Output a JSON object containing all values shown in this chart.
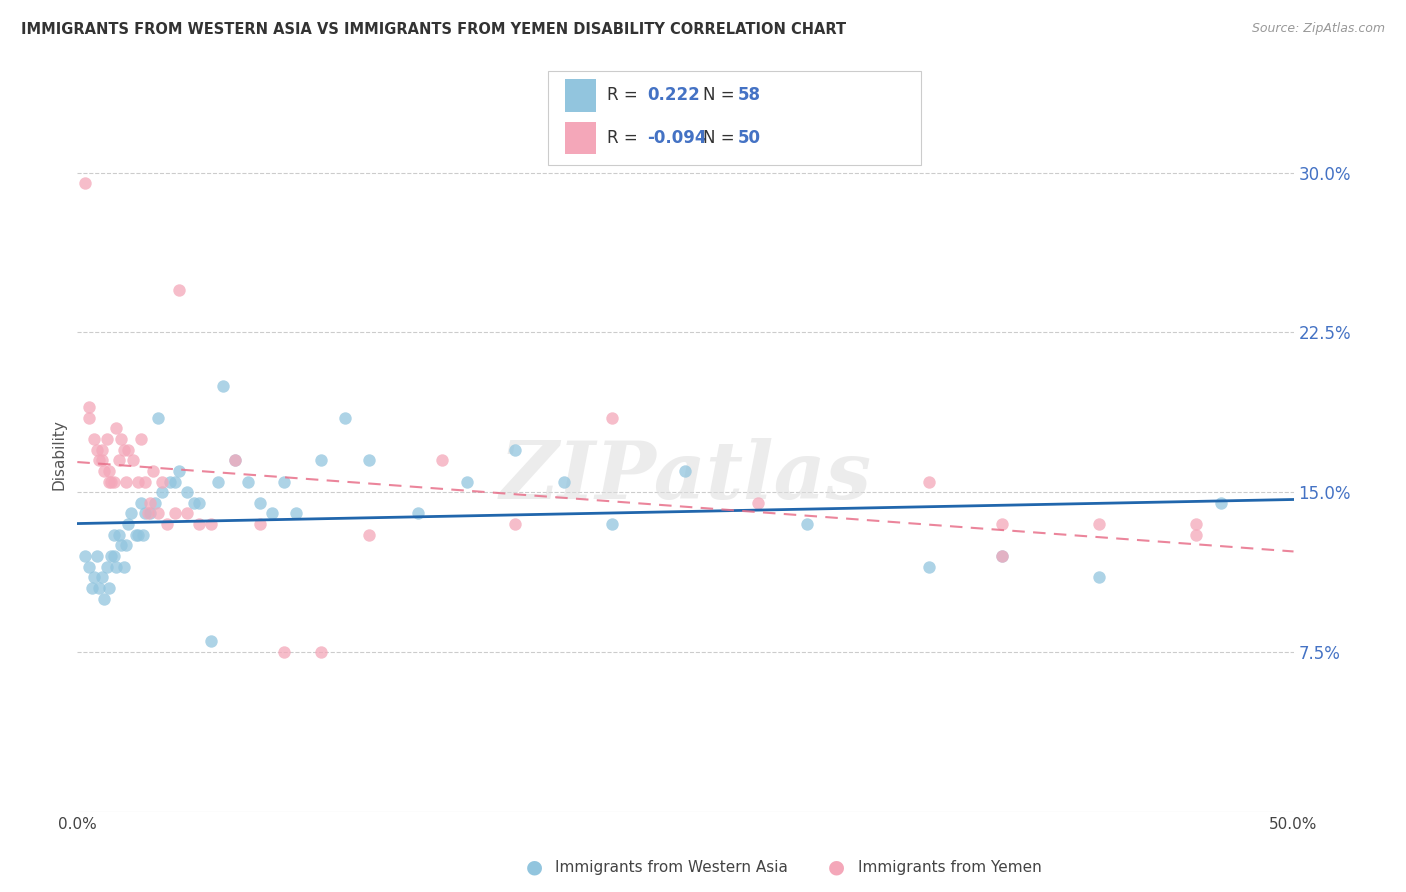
{
  "title": "IMMIGRANTS FROM WESTERN ASIA VS IMMIGRANTS FROM YEMEN DISABILITY CORRELATION CHART",
  "source": "Source: ZipAtlas.com",
  "ylabel": "Disability",
  "legend1_R": "0.222",
  "legend1_N": "58",
  "legend2_R": "-0.094",
  "legend2_N": "50",
  "blue_color": "#92c5de",
  "pink_color": "#f4a7b9",
  "blue_line_color": "#2166ac",
  "pink_line_color": "#e8708a",
  "watermark": "ZIPatlas",
  "xlim": [
    0.0,
    0.5
  ],
  "ylim": [
    0.0,
    0.335
  ],
  "yticks": [
    0.075,
    0.15,
    0.225,
    0.3
  ],
  "ytick_labels": [
    "7.5%",
    "15.0%",
    "22.5%",
    "30.0%"
  ],
  "blue_scatter_x": [
    0.003,
    0.005,
    0.006,
    0.007,
    0.008,
    0.009,
    0.01,
    0.011,
    0.012,
    0.013,
    0.014,
    0.015,
    0.015,
    0.016,
    0.017,
    0.018,
    0.019,
    0.02,
    0.021,
    0.022,
    0.024,
    0.025,
    0.026,
    0.027,
    0.028,
    0.03,
    0.032,
    0.033,
    0.035,
    0.038,
    0.04,
    0.042,
    0.045,
    0.048,
    0.05,
    0.055,
    0.058,
    0.06,
    0.065,
    0.07,
    0.075,
    0.08,
    0.085,
    0.09,
    0.1,
    0.11,
    0.12,
    0.14,
    0.16,
    0.18,
    0.2,
    0.22,
    0.25,
    0.3,
    0.35,
    0.38,
    0.42,
    0.47
  ],
  "blue_scatter_y": [
    0.12,
    0.115,
    0.105,
    0.11,
    0.12,
    0.105,
    0.11,
    0.1,
    0.115,
    0.105,
    0.12,
    0.12,
    0.13,
    0.115,
    0.13,
    0.125,
    0.115,
    0.125,
    0.135,
    0.14,
    0.13,
    0.13,
    0.145,
    0.13,
    0.14,
    0.14,
    0.145,
    0.185,
    0.15,
    0.155,
    0.155,
    0.16,
    0.15,
    0.145,
    0.145,
    0.08,
    0.155,
    0.2,
    0.165,
    0.155,
    0.145,
    0.14,
    0.155,
    0.14,
    0.165,
    0.185,
    0.165,
    0.14,
    0.155,
    0.17,
    0.155,
    0.135,
    0.16,
    0.135,
    0.115,
    0.12,
    0.11,
    0.145
  ],
  "pink_scatter_x": [
    0.003,
    0.005,
    0.005,
    0.007,
    0.008,
    0.009,
    0.01,
    0.01,
    0.011,
    0.012,
    0.013,
    0.013,
    0.014,
    0.015,
    0.016,
    0.017,
    0.018,
    0.019,
    0.02,
    0.021,
    0.023,
    0.025,
    0.026,
    0.028,
    0.029,
    0.03,
    0.031,
    0.033,
    0.035,
    0.037,
    0.04,
    0.042,
    0.045,
    0.05,
    0.055,
    0.065,
    0.075,
    0.085,
    0.1,
    0.12,
    0.15,
    0.18,
    0.22,
    0.28,
    0.35,
    0.38,
    0.42,
    0.46,
    0.46,
    0.38
  ],
  "pink_scatter_y": [
    0.295,
    0.19,
    0.185,
    0.175,
    0.17,
    0.165,
    0.17,
    0.165,
    0.16,
    0.175,
    0.16,
    0.155,
    0.155,
    0.155,
    0.18,
    0.165,
    0.175,
    0.17,
    0.155,
    0.17,
    0.165,
    0.155,
    0.175,
    0.155,
    0.14,
    0.145,
    0.16,
    0.14,
    0.155,
    0.135,
    0.14,
    0.245,
    0.14,
    0.135,
    0.135,
    0.165,
    0.135,
    0.075,
    0.075,
    0.13,
    0.165,
    0.135,
    0.185,
    0.145,
    0.155,
    0.12,
    0.135,
    0.13,
    0.135,
    0.135
  ]
}
